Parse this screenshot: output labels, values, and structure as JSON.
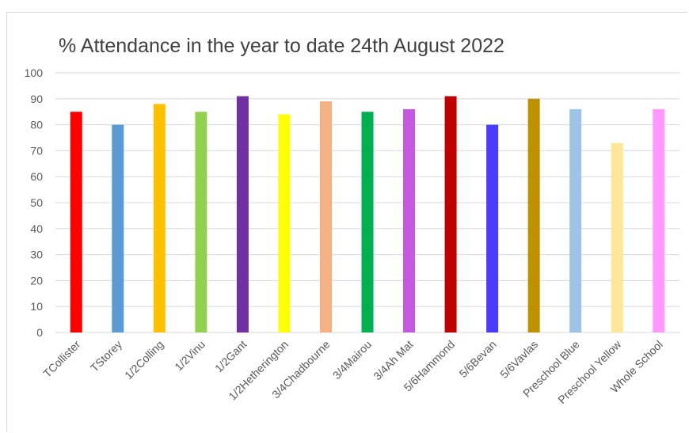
{
  "chart_data": {
    "type": "bar",
    "title": "% Attendance in the year to date 24th August 2022",
    "xlabel": "",
    "ylabel": "",
    "ylim": [
      0,
      100
    ],
    "yticks": [
      0,
      10,
      20,
      30,
      40,
      50,
      60,
      70,
      80,
      90,
      100
    ],
    "grid": true,
    "legend": "none",
    "categories": [
      "TCollister",
      "TStorey",
      "1/2Colling",
      "1/2Vinu",
      "1/2Gant",
      "1/2Hetherington",
      "3/4Chadbourne",
      "3/4Mairou",
      "3/4Ah Mat",
      "5/6Hammond",
      "5/6Bevan",
      "5/6Vavlas",
      "Preschool Blue",
      "Preschool Yellow",
      "Whole School"
    ],
    "values": [
      85,
      80,
      88,
      85,
      91,
      84,
      89,
      85,
      86,
      91,
      80,
      90,
      86,
      73,
      86
    ],
    "colors": [
      "#ff0000",
      "#5b9bd5",
      "#ffc000",
      "#92d050",
      "#7030a0",
      "#ffff00",
      "#f4b183",
      "#00b050",
      "#c55ae0",
      "#c00000",
      "#4b3bff",
      "#bf9000",
      "#9dc3e6",
      "#ffe699",
      "#ff99ff"
    ]
  }
}
